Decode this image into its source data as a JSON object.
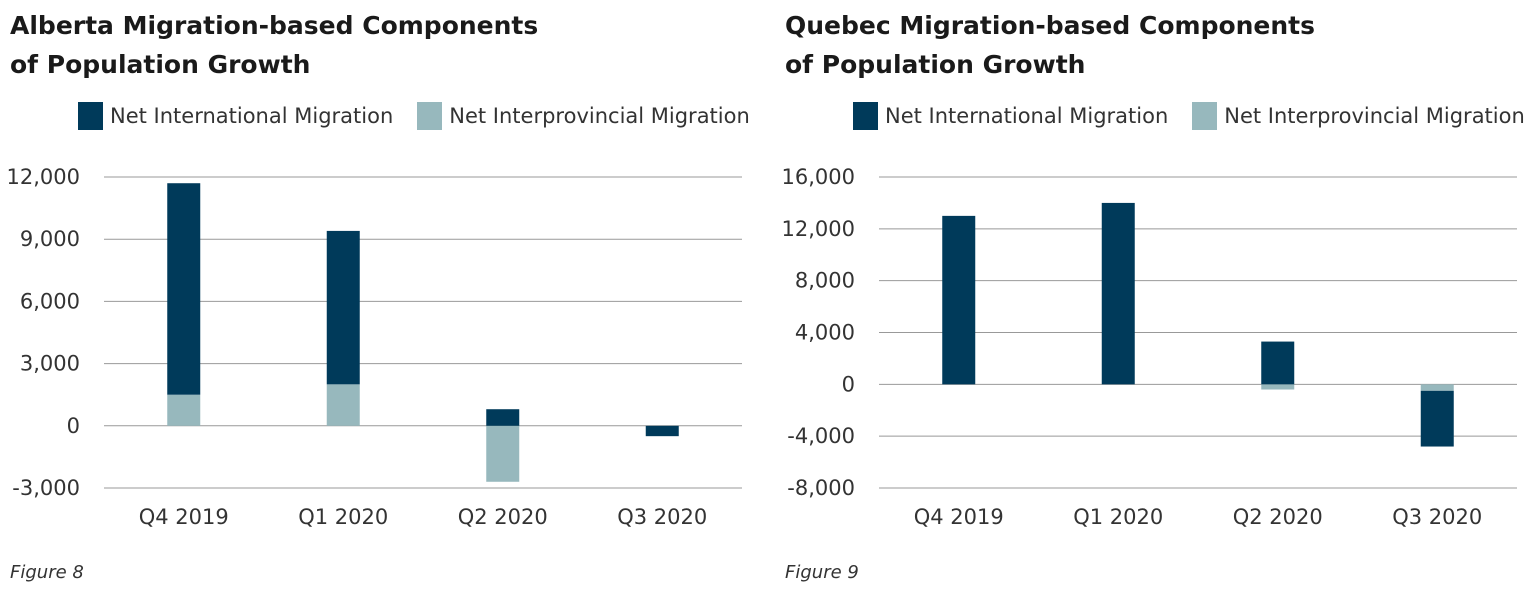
{
  "colors": {
    "international": "#003a5a",
    "interprovincial": "#97b8bd",
    "grid": "#999999"
  },
  "chart_data": [
    {
      "type": "bar",
      "stacked": true,
      "title": "Alberta Migration-based Components of Population Growth",
      "caption": "Figure 8",
      "categories": [
        "Q4 2019",
        "Q1 2020",
        "Q2 2020",
        "Q3 2020"
      ],
      "series": [
        {
          "name": "Net International Migration",
          "values": [
            10200,
            7400,
            800,
            -500
          ]
        },
        {
          "name": "Net Interprovincial Migration",
          "values": [
            1500,
            2000,
            -2700,
            0
          ]
        }
      ],
      "yticks": [
        12000,
        9000,
        6000,
        3000,
        0,
        -3000
      ],
      "ytick_labels": [
        "12,000",
        "9,000",
        "6,000",
        "3,000",
        "0",
        "-3,000"
      ],
      "ylim": [
        -3000,
        12000
      ],
      "grid": true,
      "legend": "top"
    },
    {
      "type": "bar",
      "stacked": true,
      "title": "Quebec Migration-based Components of Population Growth",
      "caption": "Figure 9",
      "categories": [
        "Q4 2019",
        "Q1 2020",
        "Q2 2020",
        "Q3 2020"
      ],
      "series": [
        {
          "name": "Net International Migration",
          "values": [
            13000,
            14000,
            3300,
            -4300
          ]
        },
        {
          "name": "Net Interprovincial Migration",
          "values": [
            0,
            0,
            -400,
            -500
          ]
        }
      ],
      "yticks": [
        16000,
        12000,
        8000,
        4000,
        0,
        -4000,
        -8000
      ],
      "ytick_labels": [
        "16,000",
        "12,000",
        "8,000",
        "4,000",
        "0",
        "-4,000",
        "-8,000"
      ],
      "ylim": [
        -8000,
        16000
      ],
      "grid": true,
      "legend": "top"
    }
  ]
}
